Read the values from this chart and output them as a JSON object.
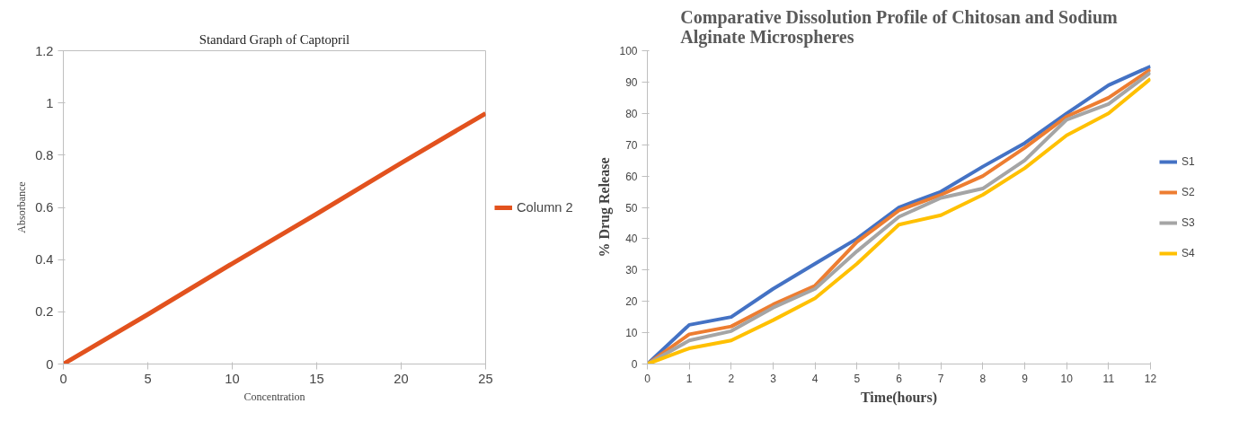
{
  "chart_data": [
    {
      "type": "line",
      "title": "Standard Graph of Captopril",
      "xlabel": "Concentration",
      "ylabel": "Absorbance",
      "x": [
        0,
        5,
        10,
        15,
        20,
        25
      ],
      "series": [
        {
          "name": "Column 2",
          "color": "#e2521e",
          "values": [
            0,
            0.19,
            0.385,
            0.575,
            0.77,
            0.96
          ]
        }
      ],
      "xlim": [
        0,
        25
      ],
      "ylim": [
        0,
        1.2
      ],
      "xticks": [
        0,
        5,
        10,
        15,
        20,
        25
      ],
      "yticks": [
        0,
        0.2,
        0.4,
        0.6,
        0.8,
        1,
        1.2
      ],
      "grid": false,
      "legend": "right"
    },
    {
      "type": "line",
      "title": "Comparative Dissolution Profile of Chitosan and Sodium Alginate Microspheres",
      "xlabel": "Time(hours)",
      "ylabel": "% Drug Release",
      "x": [
        0,
        1,
        2,
        3,
        4,
        5,
        6,
        7,
        8,
        9,
        10,
        11,
        12
      ],
      "series": [
        {
          "name": "S1",
          "color": "#4472c4",
          "values": [
            0,
            12.5,
            15,
            24,
            32,
            40,
            50,
            55,
            63,
            70.5,
            80,
            89,
            95
          ]
        },
        {
          "name": "S2",
          "color": "#ed7d31",
          "values": [
            0,
            9.5,
            12,
            19,
            25,
            39,
            49,
            54,
            60,
            69,
            79,
            85,
            94
          ]
        },
        {
          "name": "S3",
          "color": "#a5a5a5",
          "values": [
            0,
            7.5,
            10.5,
            18,
            24,
            36,
            47,
            53,
            56,
            65,
            78,
            83,
            93
          ]
        },
        {
          "name": "S4",
          "color": "#ffc000",
          "values": [
            0,
            5,
            7.5,
            14,
            21,
            32,
            44.5,
            47.5,
            54,
            62.5,
            73,
            80,
            91
          ]
        }
      ],
      "xlim": [
        0,
        12
      ],
      "ylim": [
        0,
        100
      ],
      "xticks": [
        0,
        1,
        2,
        3,
        4,
        5,
        6,
        7,
        8,
        9,
        10,
        11,
        12
      ],
      "yticks": [
        0,
        10,
        20,
        30,
        40,
        50,
        60,
        70,
        80,
        90,
        100
      ],
      "grid": false,
      "legend": "right"
    }
  ]
}
